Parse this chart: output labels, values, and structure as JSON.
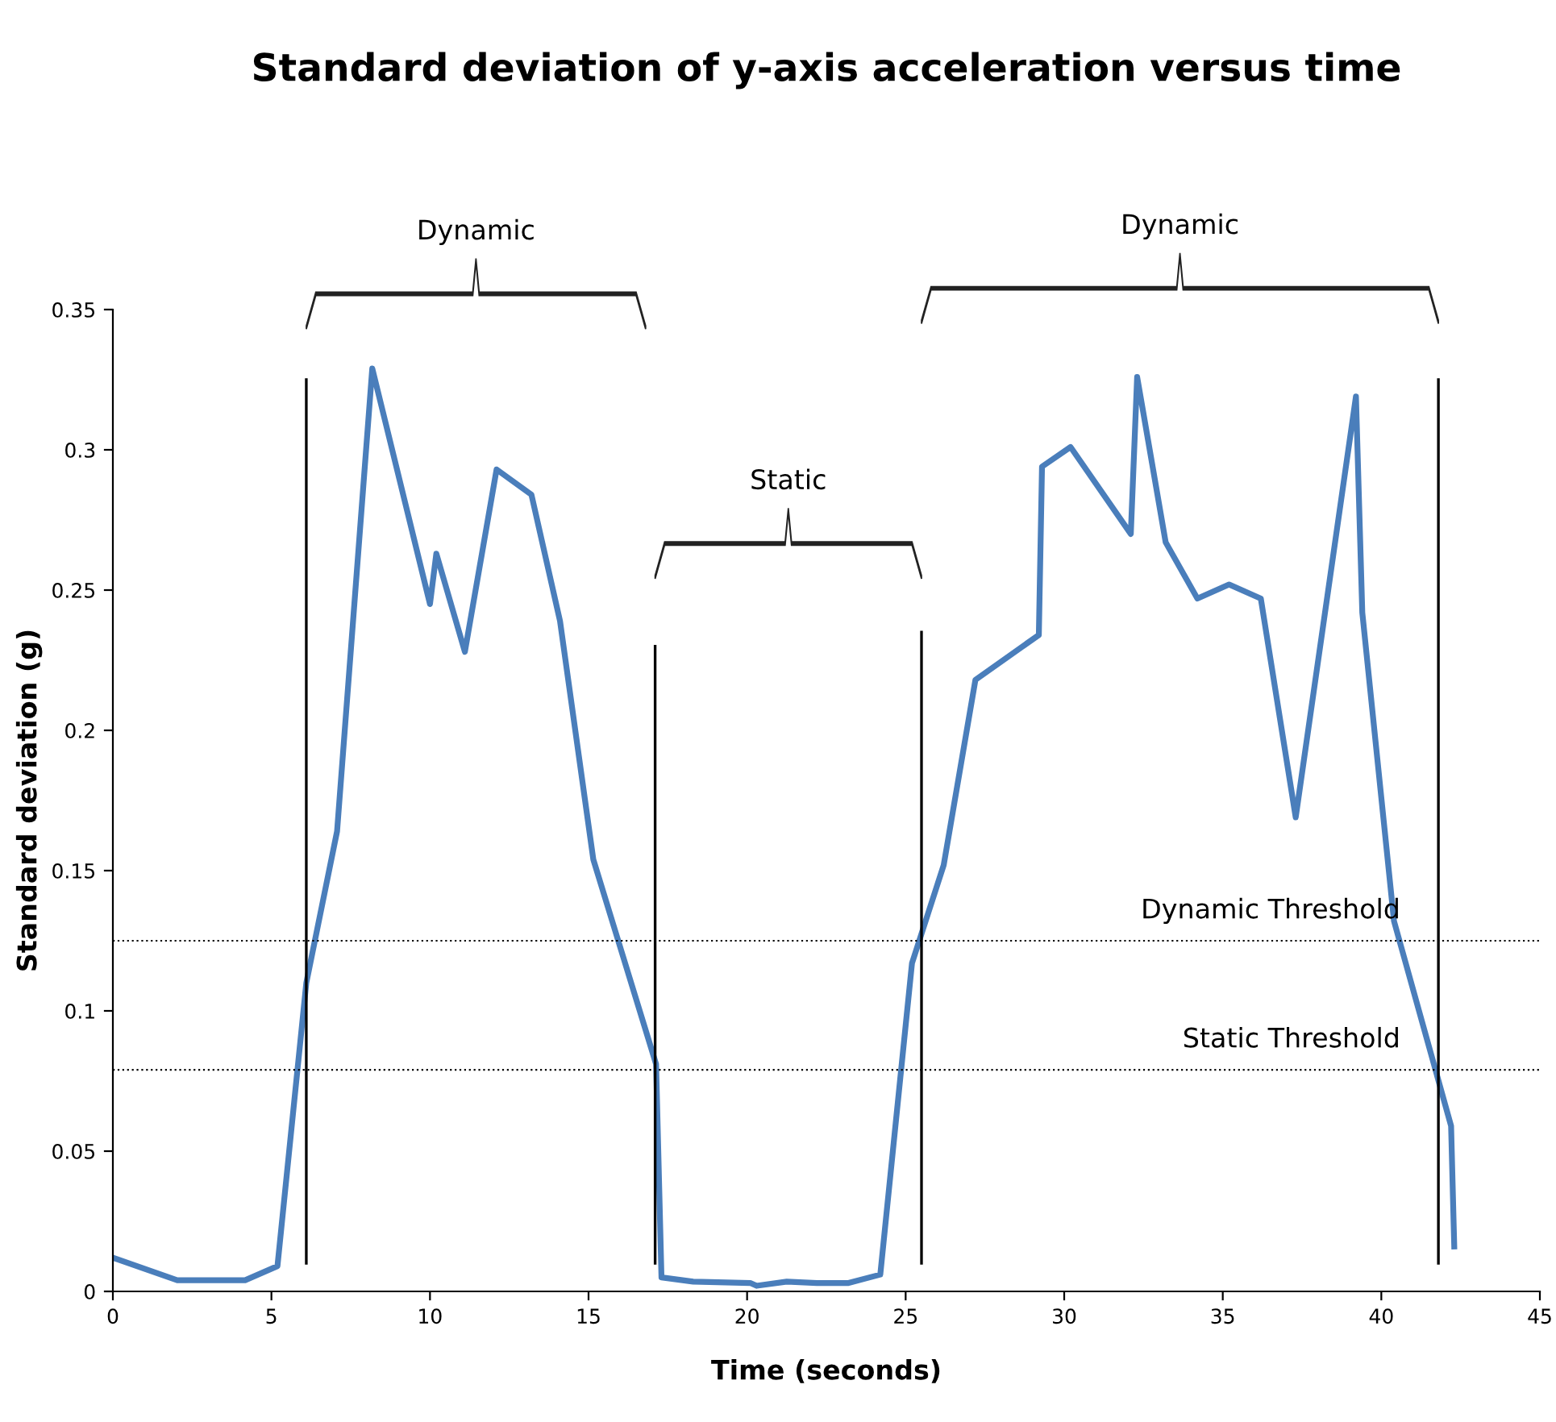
{
  "chart_data": {
    "type": "line",
    "title": "Standard deviation of y-axis acceleration versus time",
    "xlabel": "Time (seconds)",
    "ylabel": "Standard deviation (g)",
    "xlim": [
      0,
      45
    ],
    "xticks": [
      0,
      5,
      10,
      15,
      20,
      25,
      30,
      35,
      40,
      45
    ],
    "ylim": [
      0,
      0.35
    ],
    "yticks": [
      0,
      0.05,
      0.1,
      0.15,
      0.2,
      0.25,
      0.3,
      0.35
    ],
    "grid": false,
    "marker": "none",
    "line_style": "solid",
    "series": [
      {
        "color": "#4a7ebb",
        "x": [
          0,
          2.03,
          4.17,
          5.19,
          6.1,
          7.07,
          8.18,
          10.0,
          10.2,
          11.1,
          12.1,
          13.2,
          14.1,
          15.15,
          17.13,
          17.3,
          18.3,
          20.1,
          20.3,
          21.25,
          22.2,
          23.2,
          24.2,
          25.2,
          26.2,
          27.2,
          29.2,
          29.3,
          30.2,
          32.1,
          32.3,
          33.2,
          34.2,
          35.2,
          36.2,
          37.3,
          39.2,
          39.4,
          40.4,
          42.2,
          42.3
        ],
        "values": [
          0.012,
          0.004,
          0.004,
          0.009,
          0.11,
          0.164,
          0.329,
          0.245,
          0.263,
          0.228,
          0.293,
          0.284,
          0.239,
          0.154,
          0.081,
          0.005,
          0.0035,
          0.003,
          0.002,
          0.0035,
          0.003,
          0.003,
          0.006,
          0.117,
          0.152,
          0.218,
          0.234,
          0.294,
          0.301,
          0.27,
          0.326,
          0.267,
          0.247,
          0.252,
          0.247,
          0.169,
          0.319,
          0.242,
          0.132,
          0.059,
          0.016
        ]
      }
    ],
    "ref_lines": [
      {
        "axis": "y",
        "value": 0.125,
        "label": "Dynamic Threshold",
        "color": "#000000",
        "line_style": "dotted"
      },
      {
        "axis": "y",
        "value": 0.079,
        "label": "Static Threshold",
        "color": "#000000",
        "line_style": "dotted"
      },
      {
        "axis": "x",
        "value": 6.1,
        "color": "#000000",
        "line_style": "solid"
      },
      {
        "axis": "x",
        "value": 17.1,
        "color": "#000000",
        "line_style": "solid"
      },
      {
        "axis": "x",
        "value": 25.5,
        "color": "#000000",
        "line_style": "solid"
      },
      {
        "axis": "x",
        "value": 41.8,
        "color": "#000000",
        "line_style": "solid"
      }
    ],
    "annotations": [
      "Dynamic",
      "Static",
      "Dynamic"
    ]
  }
}
